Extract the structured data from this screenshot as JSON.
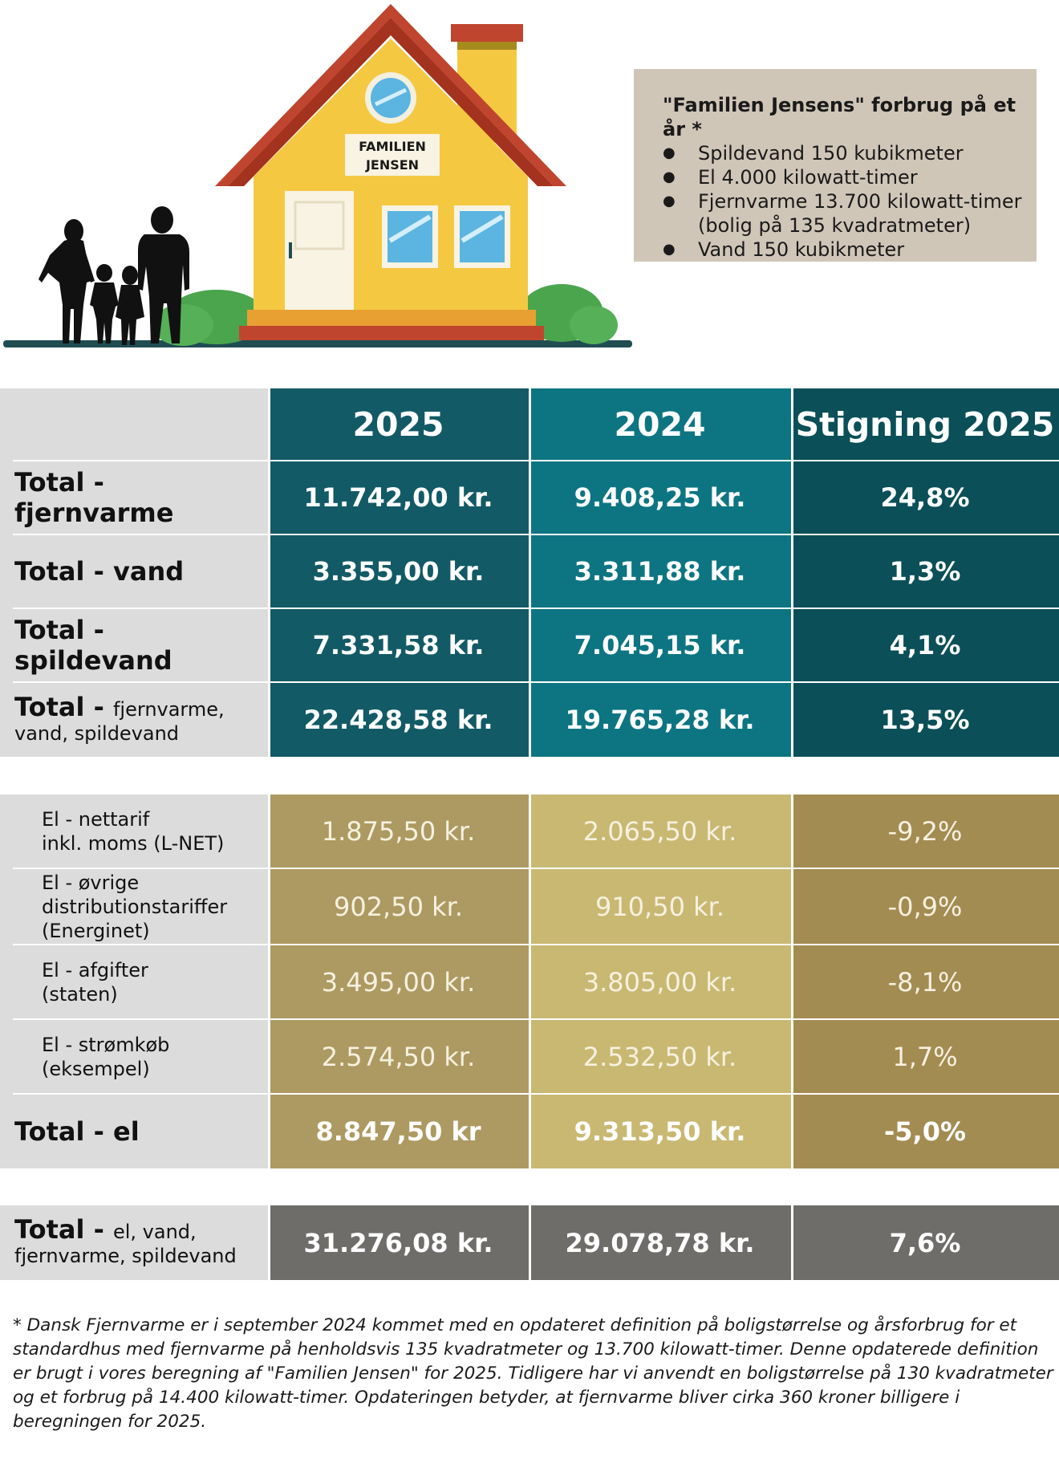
{
  "house": {
    "sign_line1": "FAMILIEN",
    "sign_line2": "JENSEN"
  },
  "info": {
    "title": "\"Familien Jensens\" forbrug på et år *",
    "items": [
      "Spildevand 150 kubikmeter",
      "El 4.000 kilowatt-timer",
      "Fjernvarme 13.700 kilowatt-timer (bolig på 135 kvadratmeter)",
      "Vand 150 kubikmeter"
    ]
  },
  "colors": {
    "col2025": "#125a66",
    "col2024": "#0d7582",
    "colRise": "#0b4f58",
    "el2025": "#ad9a62",
    "el2024": "#c9b872",
    "elRise": "#a38c52",
    "grand": "#6e6d6a",
    "labelBg": "#dcdcdc",
    "infoBg": "#d0c6b8"
  },
  "header": {
    "c1": "2025",
    "c2": "2024",
    "c3": "Stigning 2025"
  },
  "heat_rows": [
    {
      "label": "Total - fjernvarme",
      "v2025": "11.742,00 kr.",
      "v2024": "9.408,25 kr.",
      "rise": "24,8%"
    },
    {
      "label": "Total - vand",
      "v2025": "3.355,00 kr.",
      "v2024": "3.311,88 kr.",
      "rise": "1,3%"
    },
    {
      "label": "Total - spildevand",
      "v2025": "7.331,58 kr.",
      "v2024": "7.045,15 kr.",
      "rise": "4,1%"
    }
  ],
  "heat_total": {
    "label_bold": "Total - ",
    "label_rest1": "fjernvarme,",
    "label_rest2": "vand, spildevand",
    "v2025": "22.428,58 kr.",
    "v2024": "19.765,28 kr.",
    "rise": "13,5%"
  },
  "el_rows": [
    {
      "l1": "El - nettarif",
      "l2": "inkl. moms (L-NET)",
      "l3": "",
      "v2025": "1.875,50 kr.",
      "v2024": "2.065,50 kr.",
      "rise": "-9,2%"
    },
    {
      "l1": "El - øvrige",
      "l2": "distributionstariffer",
      "l3": "(Energinet)",
      "v2025": "902,50 kr.",
      "v2024": "910,50 kr.",
      "rise": "-0,9%"
    },
    {
      "l1": "El - afgifter",
      "l2": "(staten)",
      "l3": "",
      "v2025": "3.495,00 kr.",
      "v2024": "3.805,00 kr.",
      "rise": "-8,1%"
    },
    {
      "l1": "El - strømkøb",
      "l2": "(eksempel)",
      "l3": "",
      "v2025": "2.574,50 kr.",
      "v2024": "2.532,50 kr.",
      "rise": "1,7%"
    }
  ],
  "el_total": {
    "label": "Total - el",
    "v2025": "8.847,50 kr",
    "v2024": "9.313,50 kr.",
    "rise": "-5,0%"
  },
  "grand_total": {
    "label_bold": "Total - ",
    "label_rest1": "el, vand,",
    "label_rest2": "fjernvarme, spildevand",
    "v2025": "31.276,08 kr.",
    "v2024": "29.078,78 kr.",
    "rise": "7,6%"
  },
  "footnote": "* Dansk Fjernvarme er i september 2024 kommet med en opdateret definition på boligstørrelse og årsforbrug for et standardhus med fjernvarme på henholdsvis 135 kvadratmeter og 13.700 kilowatt-timer. Denne opdaterede definition er brugt i vores beregning af \"Familien Jensen\" for 2025. Tidligere har vi anvendt en boligstørrelse på 130 kvadratmeter og et forbrug på 14.400 kilowatt-timer. Opdateringen betyder, at fjernvarme bliver cirka 360 kroner billigere i beregningen for 2025."
}
